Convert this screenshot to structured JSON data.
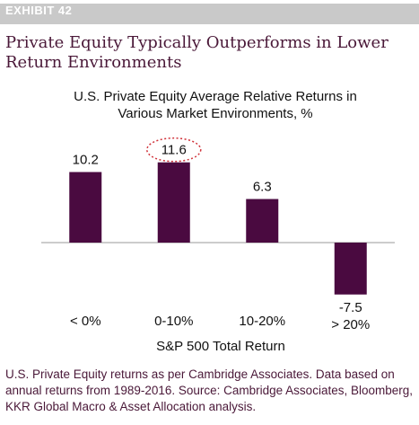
{
  "exhibit": "EXHIBIT 42",
  "headline": "Private Equity Typically Outperforms in Lower Return Environments",
  "caption": "U.S. Private Equity returns as per Cambridge Associates. Data based on annual returns from 1989-2016. Source: Cambridge Associates, Bloomberg, KKR Global Macro & Asset Allocation analysis.",
  "chart_data": {
    "type": "bar",
    "title": "U.S. Private Equity Average Relative Returns in Various Market Environments, %",
    "xlabel": "S&P 500 Total Return",
    "ylabel": "",
    "categories": [
      "< 0%",
      "0-10%",
      "10-20%",
      "> 20%"
    ],
    "values": [
      10.2,
      11.6,
      6.3,
      -7.5
    ],
    "value_labels": [
      "10.2",
      "11.6",
      "6.3",
      "-7.5"
    ],
    "highlighted": "0-10%",
    "ylim": [
      -7.5,
      11.6
    ],
    "grid": false,
    "bar_color": "#4a0a40",
    "highlight_color": "#d0323a"
  }
}
